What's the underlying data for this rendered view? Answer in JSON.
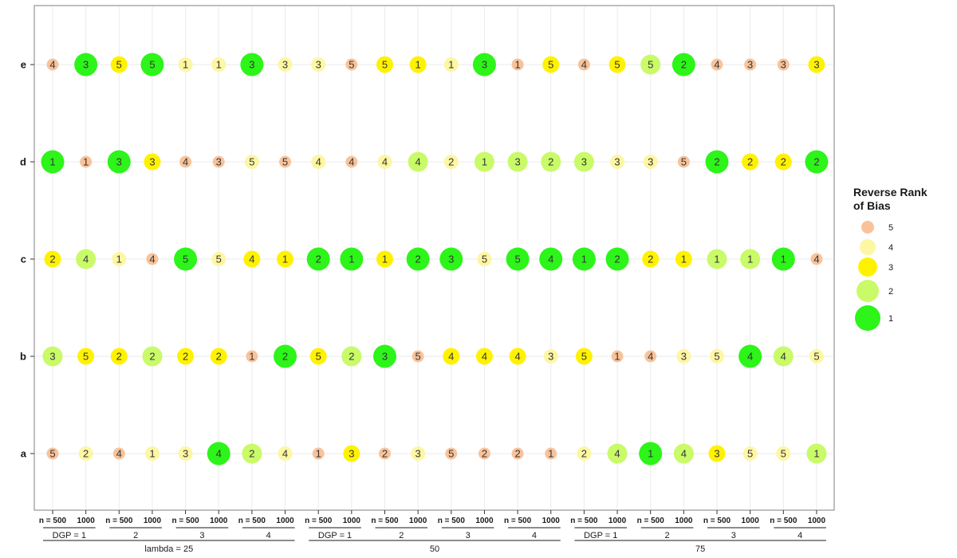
{
  "chart_data": {
    "type": "scatter",
    "y_categories": [
      "a",
      "b",
      "c",
      "d",
      "e"
    ],
    "x_columns": [
      {
        "lambda": "lambda = 25",
        "dgp": "DGP = 1",
        "n": "n = 500"
      },
      {
        "lambda": "lambda = 25",
        "dgp": "DGP = 1",
        "n": "1000"
      },
      {
        "lambda": "lambda = 25",
        "dgp": "2",
        "n": "n = 500"
      },
      {
        "lambda": "lambda = 25",
        "dgp": "2",
        "n": "1000"
      },
      {
        "lambda": "lambda = 25",
        "dgp": "3",
        "n": "n = 500"
      },
      {
        "lambda": "lambda = 25",
        "dgp": "3",
        "n": "1000"
      },
      {
        "lambda": "lambda = 25",
        "dgp": "4",
        "n": "n = 500"
      },
      {
        "lambda": "lambda = 25",
        "dgp": "4",
        "n": "1000"
      },
      {
        "lambda": "50",
        "dgp": "DGP = 1",
        "n": "n = 500"
      },
      {
        "lambda": "50",
        "dgp": "DGP = 1",
        "n": "1000"
      },
      {
        "lambda": "50",
        "dgp": "2",
        "n": "n = 500"
      },
      {
        "lambda": "50",
        "dgp": "2",
        "n": "1000"
      },
      {
        "lambda": "50",
        "dgp": "3",
        "n": "n = 500"
      },
      {
        "lambda": "50",
        "dgp": "3",
        "n": "1000"
      },
      {
        "lambda": "50",
        "dgp": "4",
        "n": "n = 500"
      },
      {
        "lambda": "50",
        "dgp": "4",
        "n": "1000"
      },
      {
        "lambda": "75",
        "dgp": "DGP = 1",
        "n": "n = 500"
      },
      {
        "lambda": "75",
        "dgp": "DGP = 1",
        "n": "1000"
      },
      {
        "lambda": "75",
        "dgp": "2",
        "n": "n = 500"
      },
      {
        "lambda": "75",
        "dgp": "2",
        "n": "1000"
      },
      {
        "lambda": "75",
        "dgp": "3",
        "n": "n = 500"
      },
      {
        "lambda": "75",
        "dgp": "3",
        "n": "1000"
      },
      {
        "lambda": "75",
        "dgp": "4",
        "n": "n = 500"
      },
      {
        "lambda": "75",
        "dgp": "4",
        "n": "1000"
      }
    ],
    "ranks": {
      "e": [
        4,
        3,
        5,
        5,
        1,
        1,
        3,
        3,
        3,
        5,
        5,
        1,
        1,
        3,
        1,
        5,
        4,
        5,
        5,
        2,
        4,
        3,
        3,
        3
      ],
      "d": [
        1,
        1,
        3,
        3,
        4,
        3,
        5,
        5,
        4,
        4,
        4,
        4,
        2,
        1,
        3,
        2,
        3,
        3,
        3,
        5,
        2,
        2,
        2,
        2
      ],
      "c": [
        2,
        4,
        1,
        4,
        5,
        5,
        4,
        1,
        2,
        1,
        1,
        2,
        3,
        5,
        5,
        4,
        1,
        2,
        2,
        1,
        1,
        1,
        1,
        4
      ],
      "b": [
        3,
        5,
        2,
        2,
        2,
        2,
        1,
        2,
        5,
        2,
        3,
        5,
        4,
        4,
        4,
        3,
        5,
        1,
        4,
        3,
        5,
        4,
        4,
        5
      ],
      "a": [
        5,
        2,
        4,
        1,
        3,
        4,
        2,
        4,
        1,
        3,
        2,
        3,
        5,
        2,
        2,
        1,
        2,
        4,
        1,
        4,
        3,
        5,
        5,
        1
      ]
    },
    "performance": {
      "e": [
        5,
        1,
        3,
        1,
        4,
        4,
        1,
        4,
        4,
        5,
        3,
        3,
        4,
        1,
        5,
        3,
        5,
        3,
        2,
        1,
        5,
        5,
        5,
        3
      ],
      "d": [
        1,
        5,
        1,
        3,
        5,
        5,
        4,
        5,
        4,
        5,
        4,
        2,
        4,
        2,
        2,
        2,
        2,
        4,
        4,
        5,
        1,
        3,
        3,
        1
      ],
      "c": [
        3,
        2,
        4,
        5,
        1,
        4,
        3,
        3,
        1,
        1,
        3,
        1,
        1,
        4,
        1,
        1,
        1,
        1,
        3,
        3,
        2,
        2,
        1,
        5
      ],
      "b": [
        2,
        3,
        3,
        2,
        3,
        3,
        5,
        1,
        3,
        2,
        1,
        5,
        3,
        3,
        3,
        4,
        3,
        5,
        5,
        4,
        4,
        1,
        2,
        4
      ],
      "a": [
        5,
        4,
        5,
        4,
        4,
        1,
        2,
        4,
        5,
        3,
        5,
        4,
        5,
        5,
        5,
        5,
        4,
        2,
        1,
        2,
        3,
        4,
        4,
        2
      ]
    },
    "legend": {
      "title_line1": "Reverse Rank",
      "title_line2": "of Bias",
      "entries": [
        {
          "label": "5",
          "level": 5,
          "color": "#f8c39b"
        },
        {
          "label": "4",
          "level": 4,
          "color": "#fdf6a3"
        },
        {
          "label": "3",
          "level": 3,
          "color": "#fff200"
        },
        {
          "label": "2",
          "level": 2,
          "color": "#c9fa68"
        },
        {
          "label": "1",
          "level": 1,
          "color": "#2df419"
        }
      ],
      "placement": "right"
    },
    "grid": true
  }
}
